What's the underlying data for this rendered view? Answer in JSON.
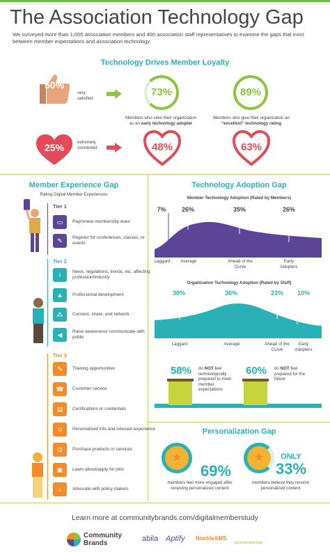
{
  "title": "The Association Technology Gap",
  "intro": "We surveyed more than 1,000 association members and 400 association staff representatives to examine the gaps that exist between member expectations and association technology.",
  "loyalty": {
    "heading": "Technology Drives Member Loyalty",
    "very_satisfied_pct": "50%",
    "very_satisfied_label": "very satisfied",
    "early_adopter_pct": "73%",
    "early_adopter_caption_pre": "Members who view their organization as an ",
    "early_adopter_caption_bold": "early technology adopter",
    "excellent_pct": "89%",
    "excellent_caption_pre": "Members who give their organization an ",
    "excellent_caption_bold": "“excellent” technology rating",
    "extremely_connected_pct": "25%",
    "extremely_connected_label": "extremely connected",
    "connected_early_pct": "48%",
    "connected_excellent_pct": "63%"
  },
  "member_experience": {
    "heading": "Member Experience Gap",
    "subheading": "Rating Digital Member Experiences",
    "tier1": {
      "label": "Tier 1",
      "items": [
        "Pay/renew membership dues",
        "Register for conferences, classes, or events"
      ]
    },
    "tier2": {
      "label": "Tier 2",
      "items": [
        "News, regulations, trends, etc. affecting profession/industry",
        "Professional development",
        "Connect, share, and network",
        "Raise awareness/ communicate with public"
      ]
    },
    "tier3": {
      "label": "Tier 3",
      "items": [
        "Training opportunities",
        "Customer service",
        "Certifications or credentials",
        "Personalized info and relevant experience",
        "Purchase products or services",
        "Learn about/apply for jobs",
        "Advocate with policy makers"
      ]
    }
  },
  "adoption": {
    "heading": "Technology Adoption Gap",
    "members_title": "Member Technology Adoption (Rated by Members)",
    "members": [
      {
        "label": "Laggard",
        "pct": "7%",
        "value": 7
      },
      {
        "label": "Average",
        "pct": "26%",
        "value": 26
      },
      {
        "label": "Ahead of the Curve",
        "pct": "35%",
        "value": 35
      },
      {
        "label": "Early Adopters",
        "pct": "26%",
        "value": 26
      }
    ],
    "staff_title": "Organization Technology Adoption (Rated by Staff)",
    "staff": [
      {
        "label": "Laggard",
        "pct": "30%",
        "value": 30
      },
      {
        "label": "Average",
        "pct": "36%",
        "value": 36
      },
      {
        "label": "Ahead of the Curve",
        "pct": "23%",
        "value": 23
      },
      {
        "label": "Early Adopters",
        "pct": "10%",
        "value": 10
      }
    ],
    "gap1_pct": "58%",
    "gap1_text_pre": "do ",
    "gap1_text_bold": "NOT",
    "gap1_text_post": " feel technologically prepared to meet member expectations",
    "gap2_pct": "60%",
    "gap2_text_pre": "do ",
    "gap2_text_bold": "NOT",
    "gap2_text_post": " feel prepared for the future"
  },
  "personalization": {
    "heading": "Personalization Gap",
    "engaged_pct": "69%",
    "engaged_caption": "members feel more engaged after receiving personalized content",
    "only_label": "ONLY",
    "receive_pct": "33%",
    "receive_caption": "members believe they receive personalized content"
  },
  "footer": {
    "learn_more": "Learn more at communitybrands.com/digitalmemberstudy",
    "brand_line1": "Community",
    "brand_line2": "Brands",
    "logo_abila": "abila",
    "logo_aptify": "Aptify",
    "logo_nimble": "NimbleAMS",
    "logo_yourmembership": "yourmembership"
  },
  "colors": {
    "teal": "#2ab1b5",
    "green": "#8cc63f",
    "red": "#e24b55",
    "purple": "#5b4597",
    "orange": "#f28c28",
    "thumb": "#e6a57a"
  }
}
